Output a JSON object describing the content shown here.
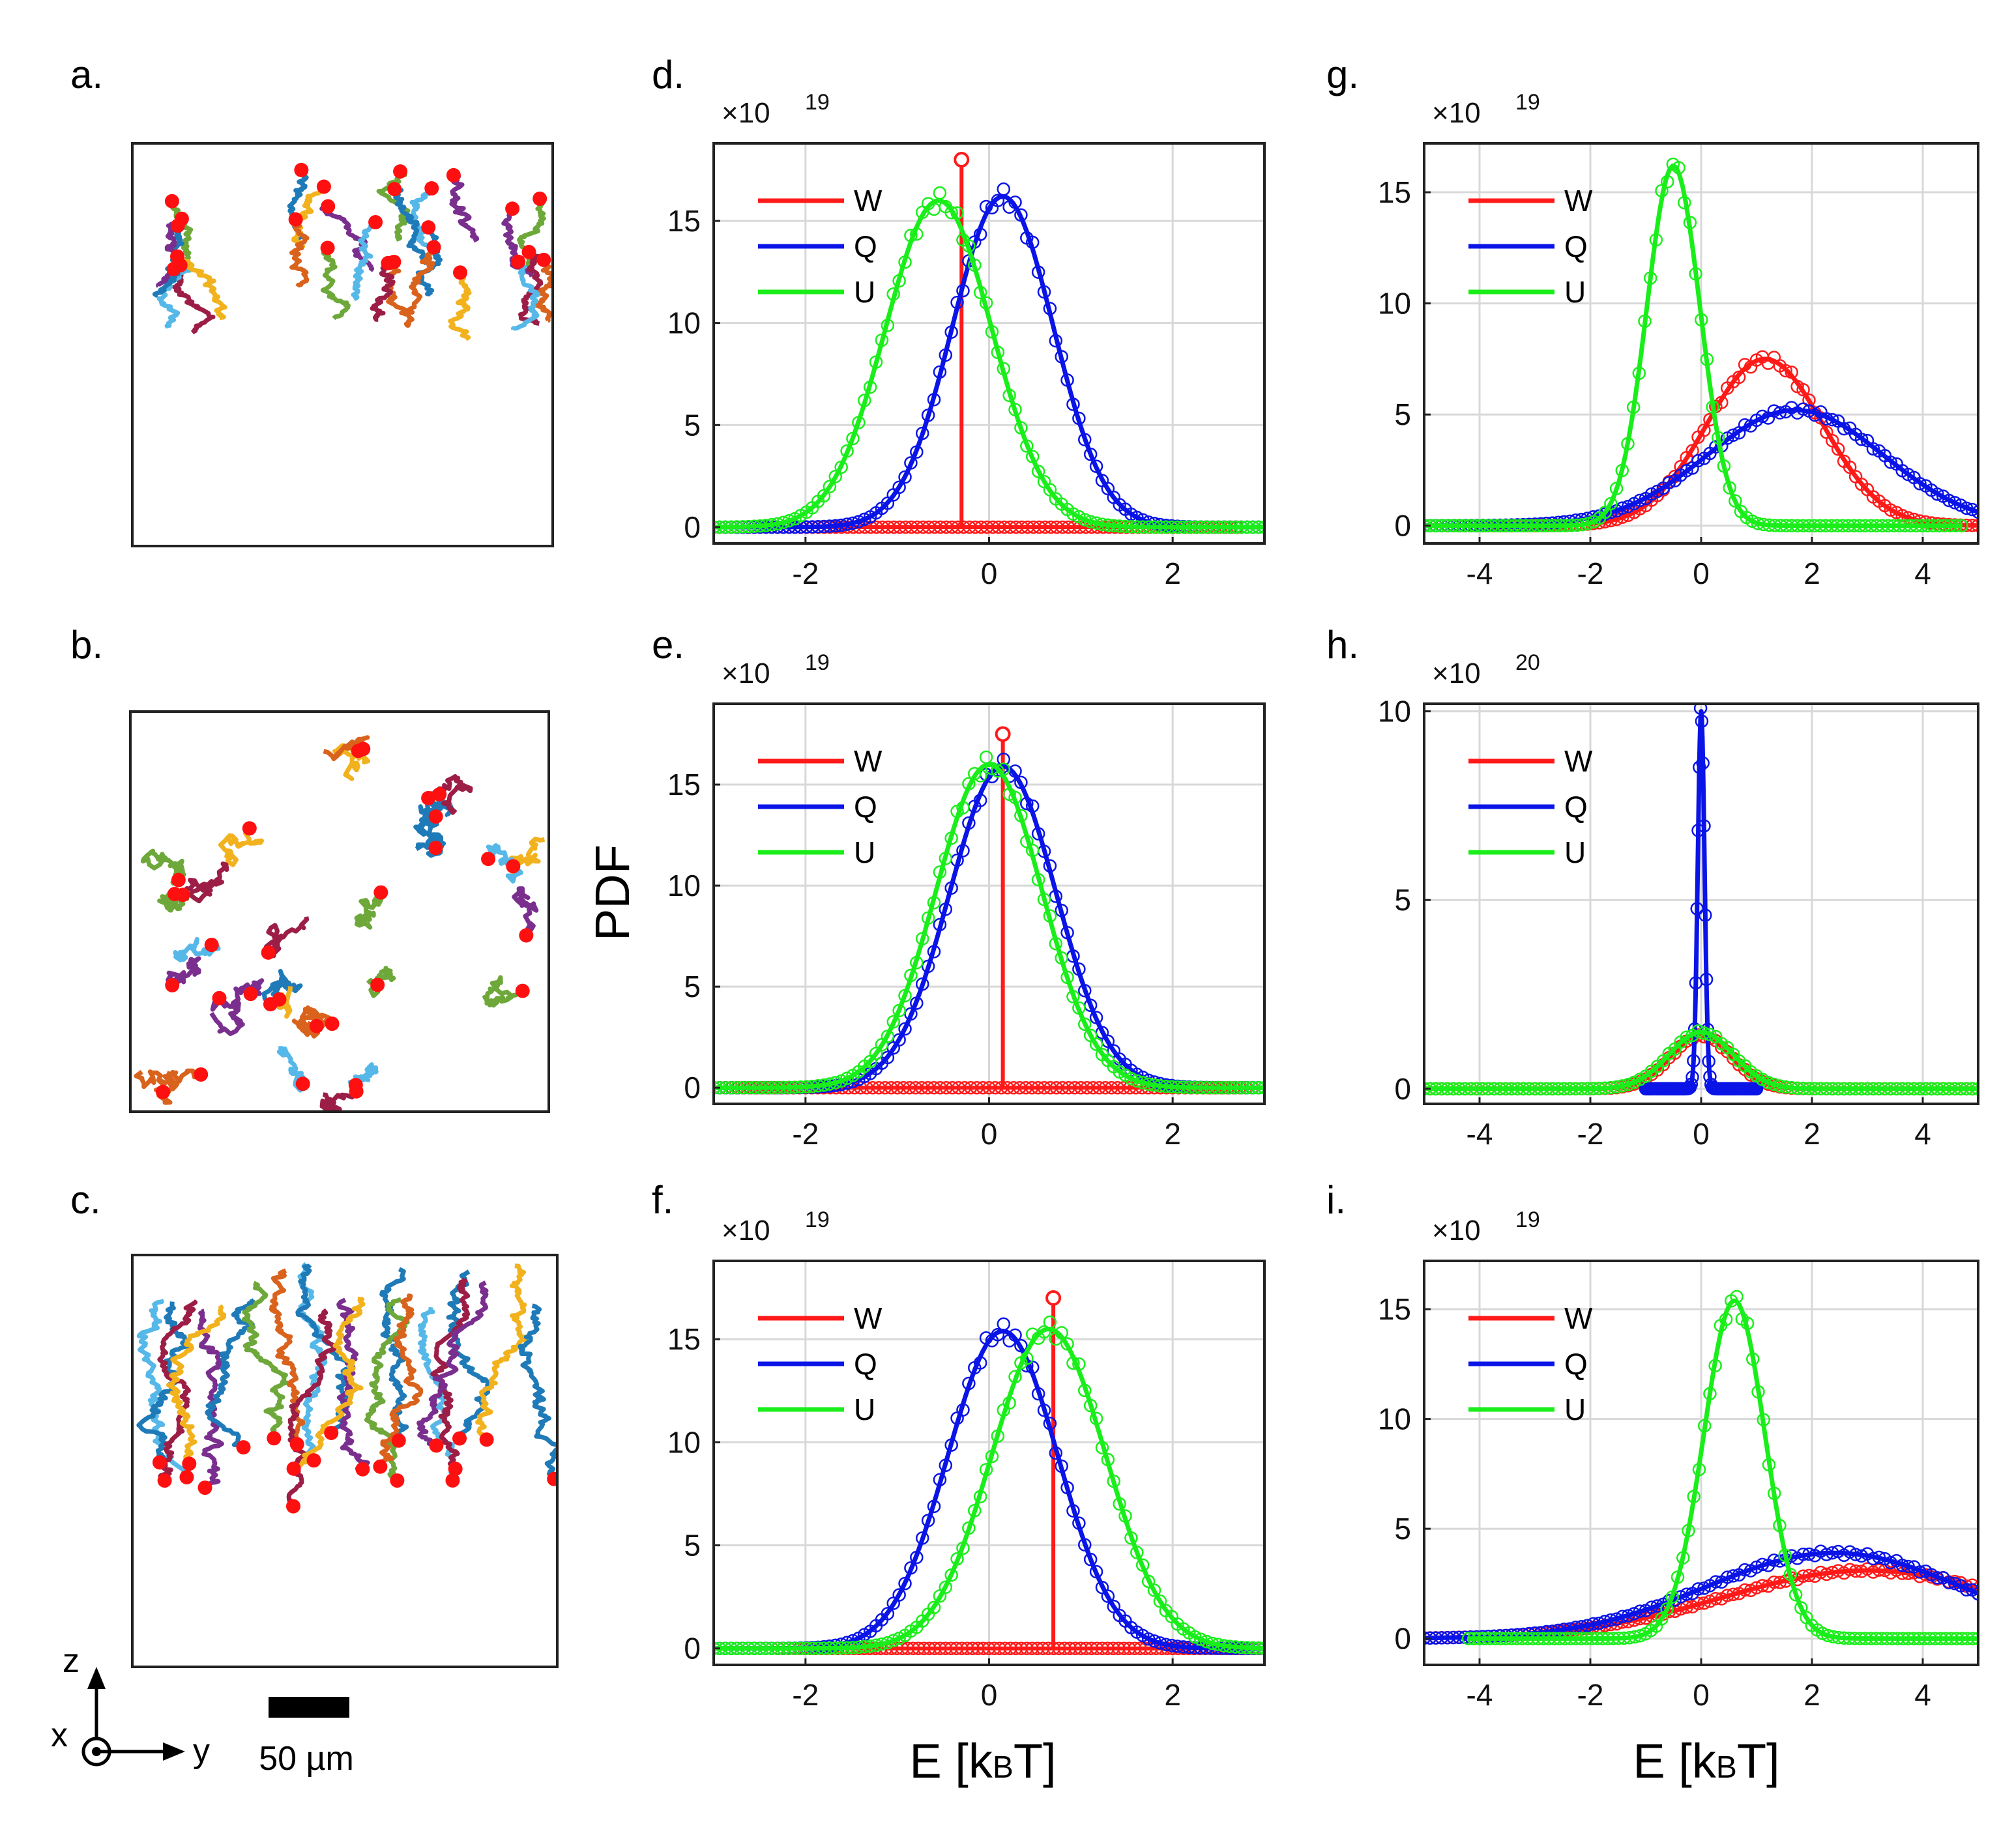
{
  "figure": {
    "scale_bar_label": "50 µm",
    "ylabel": "PDF",
    "xlabel_prefix": "E [k",
    "xlabel_sub": "B",
    "xlabel_suffix": "T]",
    "axes_labels": {
      "z": "z",
      "x": "x",
      "y": "y"
    }
  },
  "trajectory_panels": [
    {
      "label": "a.",
      "style": "vertical-clusters",
      "colors": [
        "#6ea83a",
        "#1f7ab8",
        "#d9631d",
        "#56b8e8",
        "#7a2f8e",
        "#9c1e46",
        "#f2b21e"
      ]
    },
    {
      "label": "b.",
      "style": "scattered",
      "colors": [
        "#d9631d",
        "#6ea83a",
        "#1f7ab8",
        "#f2b21e",
        "#7a2f8e",
        "#9c1e46",
        "#56b8e8"
      ]
    },
    {
      "label": "c.",
      "style": "vertical-long",
      "colors": [
        "#56b8e8",
        "#1f7ab8",
        "#9c1e46",
        "#7a2f8e",
        "#f2b21e",
        "#1f7ab8",
        "#6ea83a",
        "#d9631d"
      ]
    }
  ],
  "colors": {
    "W": "#ff1a1a",
    "Q": "#0a14e6",
    "U": "#1aee1a",
    "start_dot": "#ff1010"
  },
  "legend": [
    "W",
    "Q",
    "U"
  ],
  "chart_data": [
    {
      "panel": "d.",
      "type": "line",
      "multiplier": "×10",
      "exponent": "19",
      "xlim": [
        -3,
        3
      ],
      "ylim": [
        -0.8,
        18.8
      ],
      "xticks": [
        -2,
        0,
        2
      ],
      "yticks": [
        0,
        5,
        10,
        15
      ],
      "series": [
        {
          "name": "W",
          "kind": "delta",
          "position": -0.3,
          "peak": 18,
          "range": [
            -3,
            2.7
          ]
        },
        {
          "name": "Q",
          "kind": "gauss",
          "mu": 0.15,
          "sigma": 0.55,
          "amp": 16.2,
          "range": [
            -3,
            3
          ]
        },
        {
          "name": "U",
          "kind": "gauss",
          "mu": -0.55,
          "sigma": 0.58,
          "amp": 16.0,
          "range": [
            -3,
            3
          ]
        }
      ]
    },
    {
      "panel": "g.",
      "type": "line",
      "multiplier": "×10",
      "exponent": "19",
      "xlim": [
        -5,
        5
      ],
      "ylim": [
        -0.8,
        17.2
      ],
      "xticks": [
        -4,
        -2,
        0,
        2,
        4
      ],
      "yticks": [
        0,
        5,
        10,
        15
      ],
      "series": [
        {
          "name": "W",
          "kind": "gauss",
          "mu": 1.15,
          "sigma": 1.05,
          "amp": 7.5,
          "range": [
            -5,
            5
          ]
        },
        {
          "name": "Q",
          "kind": "gauss",
          "mu": 1.7,
          "sigma": 1.6,
          "amp": 5.2,
          "range": [
            -5,
            5
          ]
        },
        {
          "name": "U",
          "kind": "gauss",
          "mu": -0.5,
          "sigma": 0.48,
          "amp": 16.2,
          "range": [
            -5,
            4.7
          ]
        }
      ]
    },
    {
      "panel": "e.",
      "type": "line",
      "multiplier": "×10",
      "exponent": "19",
      "xlim": [
        -3,
        3
      ],
      "ylim": [
        -0.8,
        19.0
      ],
      "xticks": [
        -2,
        0,
        2
      ],
      "yticks": [
        0,
        5,
        10,
        15
      ],
      "series": [
        {
          "name": "W",
          "kind": "delta",
          "position": 0.15,
          "peak": 17.5,
          "range": [
            -3,
            3
          ]
        },
        {
          "name": "Q",
          "kind": "gauss",
          "mu": 0.15,
          "sigma": 0.58,
          "amp": 15.9,
          "range": [
            -3,
            3
          ]
        },
        {
          "name": "U",
          "kind": "gauss",
          "mu": 0.0,
          "sigma": 0.58,
          "amp": 16.0,
          "range": [
            -3,
            3
          ]
        }
      ]
    },
    {
      "panel": "h.",
      "type": "line",
      "multiplier": "×10",
      "exponent": "20",
      "xlim": [
        -5,
        5
      ],
      "ylim": [
        -0.4,
        10.2
      ],
      "xticks": [
        -4,
        -2,
        0,
        2,
        4
      ],
      "yticks": [
        0,
        5,
        10
      ],
      "series": [
        {
          "name": "W",
          "kind": "gauss",
          "mu": 0.0,
          "sigma": 0.55,
          "amp": 1.4,
          "range": [
            -5,
            5
          ]
        },
        {
          "name": "Q",
          "kind": "gauss",
          "mu": 0.0,
          "sigma": 0.06,
          "amp": 10.0,
          "range": [
            -1,
            1
          ]
        },
        {
          "name": "U",
          "kind": "gauss",
          "mu": 0.0,
          "sigma": 0.58,
          "amp": 1.5,
          "range": [
            -5,
            5
          ]
        }
      ]
    },
    {
      "panel": "f.",
      "type": "line",
      "multiplier": "×10",
      "exponent": "19",
      "xlim": [
        -3,
        3
      ],
      "ylim": [
        -0.8,
        18.8
      ],
      "xticks": [
        -2,
        0,
        2
      ],
      "yticks": [
        0,
        5,
        10,
        15
      ],
      "series": [
        {
          "name": "W",
          "kind": "delta",
          "position": 0.7,
          "peak": 17,
          "range": [
            -2.3,
            3
          ]
        },
        {
          "name": "Q",
          "kind": "gauss",
          "mu": 0.15,
          "sigma": 0.6,
          "amp": 15.4,
          "range": [
            -3,
            3
          ]
        },
        {
          "name": "U",
          "kind": "gauss",
          "mu": 0.65,
          "sigma": 0.62,
          "amp": 15.5,
          "range": [
            -3,
            3
          ]
        }
      ]
    },
    {
      "panel": "i.",
      "type": "line",
      "multiplier": "×10",
      "exponent": "19",
      "xlim": [
        -5,
        5
      ],
      "ylim": [
        -1.2,
        17.2
      ],
      "xticks": [
        -4,
        -2,
        0,
        2,
        4
      ],
      "yticks": [
        0,
        5,
        10,
        15
      ],
      "series": [
        {
          "name": "W",
          "kind": "gauss",
          "mu": 3.0,
          "sigma": 2.6,
          "amp": 3.1,
          "range": [
            -5,
            5
          ]
        },
        {
          "name": "Q",
          "kind": "gauss",
          "mu": 2.4,
          "sigma": 2.3,
          "amp": 3.9,
          "range": [
            -5,
            5
          ]
        },
        {
          "name": "U",
          "kind": "gauss",
          "mu": 0.6,
          "sigma": 0.55,
          "amp": 15.4,
          "range": [
            -4.2,
            5
          ]
        }
      ]
    }
  ]
}
